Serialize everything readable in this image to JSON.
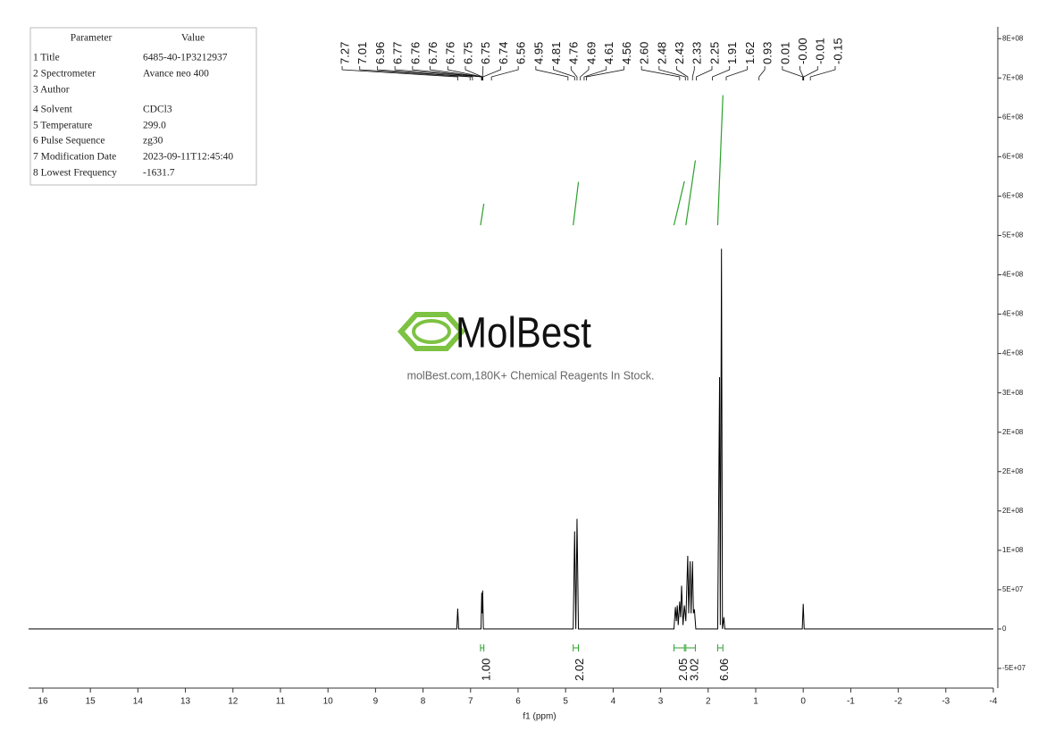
{
  "chart_data": {
    "type": "line",
    "color": "#000000",
    "integral_color": "#2ca02c",
    "xlabel": "f1 (ppm)",
    "x": [
      16.3,
      7.29,
      7.27,
      7.25,
      6.78,
      6.765,
      6.755,
      6.745,
      6.73,
      4.84,
      4.81,
      4.785,
      4.76,
      4.73,
      2.72,
      2.69,
      2.67,
      2.65,
      2.63,
      2.6,
      2.58,
      2.56,
      2.53,
      2.5,
      2.47,
      2.43,
      2.41,
      2.38,
      2.36,
      2.33,
      2.31,
      2.29,
      2.26,
      1.8,
      1.76,
      1.745,
      1.72,
      1.7,
      1.67,
      1.65,
      0.02,
      0,
      -0.02,
      -4.0
    ],
    "values": [
      0,
      0,
      26000000,
      0,
      0,
      46000000,
      20000000,
      49000000,
      0,
      0,
      124000000,
      0,
      140000000,
      0,
      0,
      28000000,
      10000000,
      30000000,
      5000000,
      35000000,
      15000000,
      55000000,
      5000000,
      30000000,
      10000000,
      93000000,
      20000000,
      86000000,
      20000000,
      86000000,
      20000000,
      25000000,
      0,
      0,
      320000000,
      5000000,
      483000000,
      0,
      15000000,
      0,
      0,
      32000000,
      0,
      0
    ],
    "xlim": [
      16.3,
      -4.0
    ],
    "xticks": [
      16,
      15,
      14,
      13,
      12,
      11,
      10,
      9,
      8,
      7,
      6,
      5,
      4,
      3,
      2,
      1,
      0,
      -1,
      -2,
      -3,
      -4
    ],
    "ylim": [
      -75000000,
      765000000
    ],
    "yticks": [
      {
        "value": -50000000,
        "label": "-5E+07"
      },
      0,
      {
        "value": 50000000,
        "label": "5E+07"
      },
      {
        "value": 100000000,
        "label": "1E+08"
      },
      {
        "value": 150000000,
        "label": "2E+08"
      },
      {
        "value": 200000000,
        "label": "2E+08"
      },
      {
        "value": 250000000,
        "label": "2E+08"
      },
      {
        "value": 300000000,
        "label": "3E+08"
      },
      {
        "value": 350000000,
        "label": "4E+08"
      },
      {
        "value": 400000000,
        "label": "4E+08"
      },
      {
        "value": 450000000,
        "label": "4E+08"
      },
      {
        "value": 500000000,
        "label": "5E+08"
      },
      {
        "value": 550000000,
        "label": "6E+08"
      },
      {
        "value": 600000000,
        "label": "6E+08"
      },
      {
        "value": 650000000,
        "label": "6E+08"
      },
      {
        "value": 700000000,
        "label": "7E+08"
      },
      {
        "value": 750000000,
        "label": "8E+08"
      }
    ],
    "peaks": [
      7.27,
      7.01,
      6.96,
      6.77,
      6.76,
      6.76,
      6.76,
      6.75,
      6.75,
      6.74,
      6.56,
      4.95,
      4.81,
      4.76,
      4.69,
      4.61,
      4.56,
      {
        "value": 2.6,
        "label": "2.60"
      },
      2.48,
      2.43,
      2.33,
      2.25,
      1.91,
      1.62,
      0.93,
      0.01,
      {
        "value": 0,
        "label": "-0.00"
      },
      -0.01,
      -0.15
    ],
    "integrals": [
      {
        "value": 1,
        "label": "1.00",
        "from": 6.79,
        "to": 6.72
      },
      {
        "value": 2.02,
        "label": "2.02",
        "from": 4.84,
        "to": 4.73
      },
      {
        "value": 2.05,
        "label": "2.05",
        "from": 2.72,
        "to": 2.5
      },
      {
        "value": 3.02,
        "label": "3.02",
        "from": 2.47,
        "to": 2.27
      },
      {
        "value": 6.06,
        "label": "6.06",
        "from": 1.8,
        "to": 1.69
      }
    ]
  },
  "parameters": {
    "header": [
      "Parameter",
      "Value"
    ],
    "rows": [
      [
        "1 Title",
        "6485-40-1P3212937"
      ],
      [
        "2 Spectrometer",
        "Avance neo 400"
      ],
      [
        "3 Author"
      ],
      [
        "4 Solvent",
        "CDCl3"
      ],
      [
        "5 Temperature",
        "299.0"
      ],
      [
        "6 Pulse Sequence",
        "zg30"
      ],
      [
        "7 Modification Date",
        "2023-09-11T12:45:40"
      ],
      [
        "8 Lowest Frequency",
        "-1631.7"
      ]
    ]
  },
  "watermark": {
    "brand": "MolBest",
    "tagline": "molBest.com,180K+ Chemical Reagents In Stock."
  }
}
